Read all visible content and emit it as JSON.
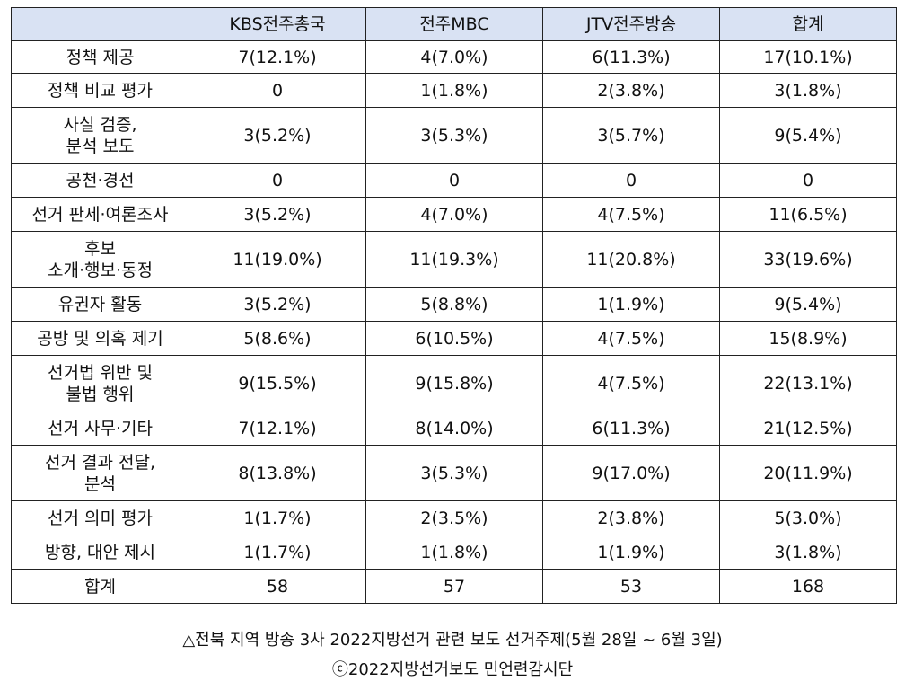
{
  "table": {
    "headers": [
      "",
      "KBS전주총국",
      "전주MBC",
      "JTV전주방송",
      "합계"
    ],
    "rows": [
      {
        "label": "정책 제공",
        "cells": [
          "7(12.1%)",
          "4(7.0%)",
          "6(11.3%)",
          "17(10.1%)"
        ]
      },
      {
        "label": "정책 비교 평가",
        "cells": [
          "0",
          "1(1.8%)",
          "2(3.8%)",
          "3(1.8%)"
        ]
      },
      {
        "label": "사실 검증,\n분석 보도",
        "cells": [
          "3(5.2%)",
          "3(5.3%)",
          "3(5.7%)",
          "9(5.4%)"
        ]
      },
      {
        "label": "공천·경선",
        "cells": [
          "0",
          "0",
          "0",
          "0"
        ]
      },
      {
        "label": "선거 판세·여론조사",
        "cells": [
          "3(5.2%)",
          "4(7.0%)",
          "4(7.5%)",
          "11(6.5%)"
        ]
      },
      {
        "label": "후보\n소개·행보·동정",
        "cells": [
          "11(19.0%)",
          "11(19.3%)",
          "11(20.8%)",
          "33(19.6%)"
        ]
      },
      {
        "label": "유권자 활동",
        "cells": [
          "3(5.2%)",
          "5(8.8%)",
          "1(1.9%)",
          "9(5.4%)"
        ]
      },
      {
        "label": "공방 및 의혹 제기",
        "cells": [
          "5(8.6%)",
          "6(10.5%)",
          "4(7.5%)",
          "15(8.9%)"
        ]
      },
      {
        "label": "선거법 위반 및\n불법 행위",
        "cells": [
          "9(15.5%)",
          "9(15.8%)",
          "4(7.5%)",
          "22(13.1%)"
        ]
      },
      {
        "label": "선거 사무·기타",
        "cells": [
          "7(12.1%)",
          "8(14.0%)",
          "6(11.3%)",
          "21(12.5%)"
        ]
      },
      {
        "label": "선거 결과 전달,\n분석",
        "cells": [
          "8(13.8%)",
          "3(5.3%)",
          "9(17.0%)",
          "20(11.9%)"
        ]
      },
      {
        "label": "선거 의미 평가",
        "cells": [
          "1(1.7%)",
          "2(3.5%)",
          "2(3.8%)",
          "5(3.0%)"
        ]
      },
      {
        "label": "방향, 대안 제시",
        "cells": [
          "1(1.7%)",
          "1(1.8%)",
          "1(1.9%)",
          "3(1.8%)"
        ]
      },
      {
        "label": "합계",
        "cells": [
          "58",
          "57",
          "53",
          "168"
        ]
      }
    ]
  },
  "captions": {
    "line1": "△전북 지역 방송 3사 2022지방선거 관련 보도 선거주제(5월 28일 ~ 6월 3일)",
    "line2": "ⓒ2022지방선거보도 민언련감시단"
  }
}
